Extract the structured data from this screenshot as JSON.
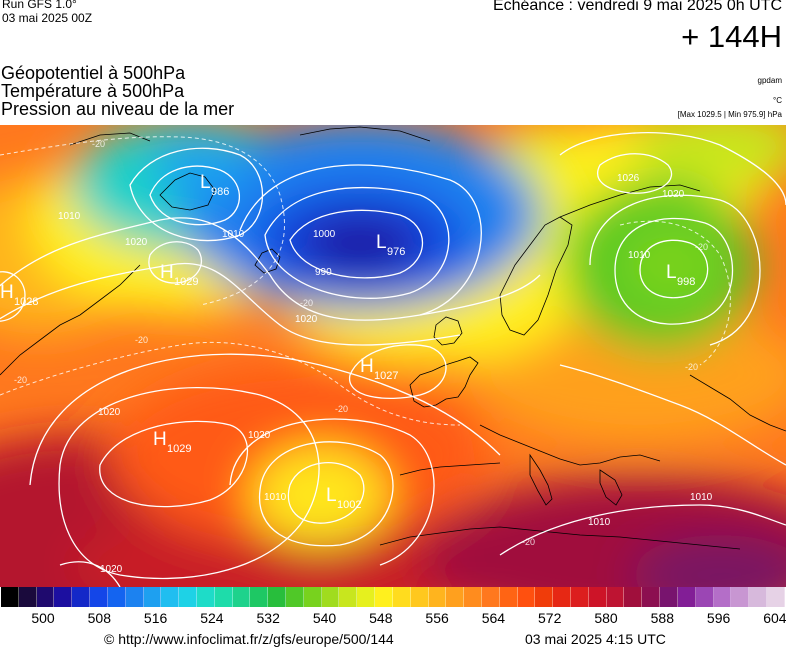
{
  "header": {
    "run_title": "Run GFS 1.0°",
    "run_date": "03 mai 2025 00Z",
    "valid_time": "Echéance : vendredi 9 mai 2025 0h UTC",
    "lead_time": "+ 144H"
  },
  "fields": {
    "line1": "Géopotentiel à 500hPa",
    "line2": "Température à 500hPa",
    "line3": "Pression au niveau de la mer"
  },
  "units": {
    "geopotential": "gpdam",
    "temperature": "°C",
    "pressure_range": "[Max 1029.5 | Min 975.9] hPa"
  },
  "pressure_centers": [
    {
      "type": "L",
      "value": "986"
    },
    {
      "type": "L",
      "value": "976"
    },
    {
      "type": "L",
      "value": "998"
    },
    {
      "type": "L",
      "value": "1002"
    },
    {
      "type": "H",
      "value": "1029"
    },
    {
      "type": "H",
      "value": "1028"
    },
    {
      "type": "H",
      "value": "1027"
    },
    {
      "type": "H",
      "value": "1029"
    }
  ],
  "isobar_labels": [
    "1010",
    "1020",
    "1000",
    "990",
    "1010",
    "1026",
    "1020",
    "1010",
    "1020",
    "1010",
    "1020",
    "1020",
    "1010",
    "1010",
    "1020"
  ],
  "temperature_labels": [
    "-20",
    "-20",
    "-20",
    "-20",
    "-20",
    "-20",
    "-20",
    "-20"
  ],
  "legend": {
    "ticks": [
      "500",
      "508",
      "516",
      "524",
      "532",
      "540",
      "548",
      "556",
      "564",
      "572",
      "580",
      "588",
      "596",
      "604"
    ],
    "colors": [
      "#000000",
      "#1a0a3c",
      "#1f0a6e",
      "#1c0fa0",
      "#1428c8",
      "#1446e8",
      "#1464f0",
      "#1c82f0",
      "#1ea0f0",
      "#20bef0",
      "#1ed2e6",
      "#1edcc8",
      "#1edcaa",
      "#1ed28c",
      "#1ec864",
      "#28be3c",
      "#50c828",
      "#78d21e",
      "#a0dc1e",
      "#c8e61e",
      "#e6f01e",
      "#fff01e",
      "#ffdc1e",
      "#ffc81e",
      "#ffb41e",
      "#ffa01e",
      "#ff8c1e",
      "#ff781e",
      "#ff6414",
      "#ff500f",
      "#f03c0a",
      "#e62814",
      "#dc1e1e",
      "#cd1428",
      "#be1432",
      "#a00f3c",
      "#8c0f50",
      "#78146e",
      "#821e96",
      "#9b46b4",
      "#b46ec8",
      "#c896d2",
      "#d7b9dc",
      "#e6d2e6"
    ]
  },
  "footer": {
    "copyright": "© http://www.infoclimat.fr/z/gfs/europe/500/144",
    "generated": "03 mai 2025  4:15 UTC"
  }
}
